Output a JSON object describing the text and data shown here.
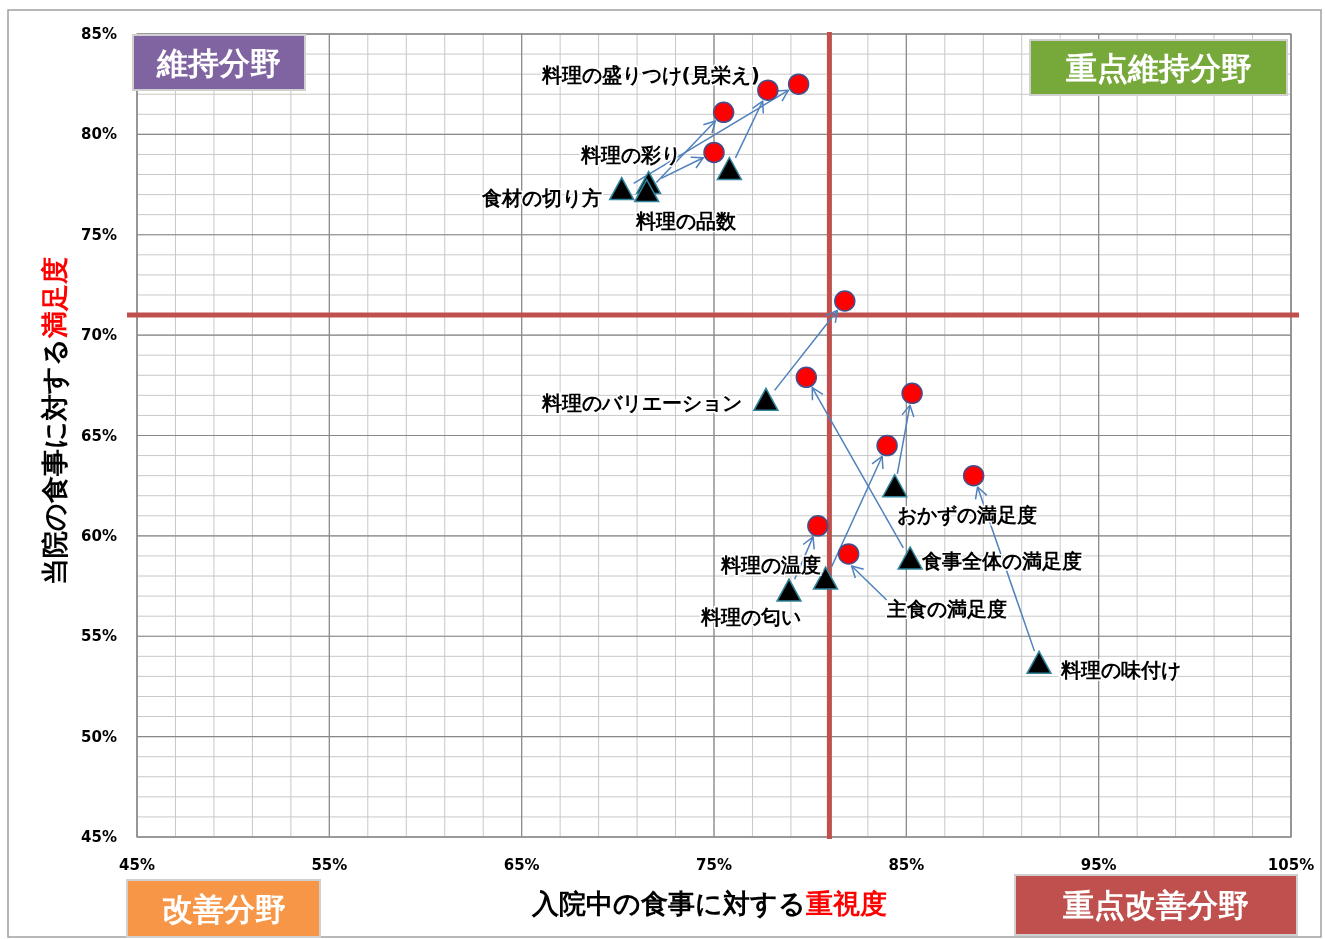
{
  "chart_data": {
    "type": "scatter",
    "xlabel": "入院中の食事に対する**重視度**",
    "ylabel": "当院の食事に対する**満足度**",
    "xlim": [
      45,
      105
    ],
    "ylim": [
      45,
      85
    ],
    "xticks": [
      {
        "value": 45,
        "label": "45%"
      },
      {
        "value": 55,
        "label": "55%"
      },
      {
        "value": 65,
        "label": "65%"
      },
      {
        "value": 75,
        "label": "75%"
      },
      {
        "value": 85,
        "label": "85%"
      },
      {
        "value": 95,
        "label": "95%"
      },
      {
        "value": 105,
        "label": "105%"
      }
    ],
    "yticks": [
      {
        "value": 45,
        "label": "45%"
      },
      {
        "value": 50,
        "label": "50%"
      },
      {
        "value": 55,
        "label": "55%"
      },
      {
        "value": 60,
        "label": "60%"
      },
      {
        "value": 65,
        "label": "65%"
      },
      {
        "value": 70,
        "label": "70%"
      },
      {
        "value": 75,
        "label": "75%"
      },
      {
        "value": 80,
        "label": "80%"
      },
      {
        "value": 85,
        "label": "85%"
      }
    ],
    "grid": true,
    "series": [
      {
        "marker": "triangle",
        "color": "#000000",
        "x": [
          75.8,
          71.6,
          70.2,
          71.5,
          77.7,
          84.4,
          85.2,
          null,
          78.9,
          80.8,
          91.9
        ],
        "values": [
          78.2,
          77.5,
          77.2,
          77.1,
          66.7,
          62.4,
          58.8,
          null,
          57.2,
          57.8,
          53.6
        ]
      },
      {
        "marker": "circle",
        "color": "#ff0000",
        "x": [
          77.8,
          75.0,
          79.4,
          75.5,
          81.8,
          85.3,
          79.8,
          82.0,
          80.4,
          84.0,
          88.5
        ],
        "values": [
          82.2,
          79.1,
          82.5,
          81.1,
          71.7,
          67.1,
          67.9,
          59.1,
          60.5,
          64.5,
          63.0
        ]
      }
    ],
    "ref_lines": [
      {
        "axis": "x",
        "value": 81,
        "color": "#c0504d"
      },
      {
        "axis": "y",
        "value": 71,
        "color": "#c0504d"
      }
    ],
    "annotations": [
      {
        "text": "料理の盛りつけ(見栄え)",
        "x": 77.8,
        "y": 82.2
      },
      {
        "text": "料理の彩り",
        "x": 75.0,
        "y": 79.1
      },
      {
        "text": "食材の切り方",
        "x": 70.2,
        "y": 77.2
      },
      {
        "text": "料理の品数",
        "x": 71.5,
        "y": 77.1
      },
      {
        "text": "料理のバリエーション",
        "x": 77.7,
        "y": 66.7
      },
      {
        "text": "おかずの満足度",
        "x": 84.4,
        "y": 62.4
      },
      {
        "text": "食事全体の満足度",
        "x": 85.2,
        "y": 58.8
      },
      {
        "text": "主食の満足度",
        "x": 82.0,
        "y": 59.1
      },
      {
        "text": "料理の温度",
        "x": 80.8,
        "y": 57.8
      },
      {
        "text": "料理の匂い",
        "x": 78.9,
        "y": 57.2
      },
      {
        "text": "料理の味付け",
        "x": 91.9,
        "y": 53.6
      },
      "維持分野",
      "重点維持分野",
      "改善分野",
      "重点改善分野"
    ]
  }
}
